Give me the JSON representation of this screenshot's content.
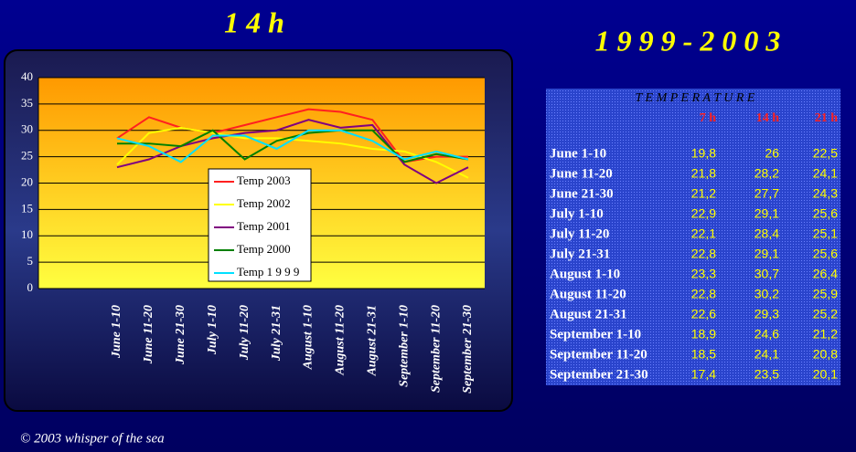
{
  "chart_data": {
    "type": "line",
    "title": "1 4  h",
    "categories": [
      "June 1-10",
      "June 11-20",
      "June 21-30",
      "July 1-10",
      "July 11-20",
      "July 21-31",
      "August 1-10",
      "August 11-20",
      "August 21-31",
      "September 1-10",
      "September 11-20",
      "September 21-30"
    ],
    "series": [
      {
        "name": "Temp 2003",
        "color": "#ff2020",
        "values": [
          28.5,
          32.5,
          30.5,
          29.5,
          31,
          32.5,
          34,
          33.5,
          32,
          24,
          25,
          25
        ]
      },
      {
        "name": "Temp 2002",
        "color": "#ffff00",
        "values": [
          23.5,
          29.5,
          30.5,
          29.5,
          28.5,
          28.5,
          28,
          27.5,
          26.5,
          26,
          24,
          21
        ]
      },
      {
        "name": "Temp 2001",
        "color": "#800080",
        "values": [
          23,
          24.5,
          27,
          28.5,
          29.5,
          30,
          32,
          30.5,
          31,
          23.5,
          20,
          23
        ]
      },
      {
        "name": "Temp 2000",
        "color": "#008000",
        "values": [
          27.5,
          27.5,
          27,
          30,
          24.5,
          28,
          29.5,
          30,
          30,
          24,
          25.5,
          24.5
        ]
      },
      {
        "name": "Temp 1 9 9 9",
        "color": "#00e0ff",
        "values": [
          28.5,
          27,
          24,
          29,
          29,
          26.5,
          30,
          30,
          28,
          24.5,
          26,
          24.5
        ]
      }
    ],
    "ylim": [
      0,
      40
    ],
    "yticks": [
      0,
      5,
      10,
      15,
      20,
      25,
      30,
      35,
      40
    ],
    "grid": true
  },
  "header": {
    "period": "1 9 9 9 - 2 0 0 3"
  },
  "table": {
    "title": "T E M P E R A T U R E",
    "columns": [
      "7 h",
      "14 h",
      "21 h"
    ],
    "rows": [
      [
        "June 1-10",
        "19,8",
        "26",
        "22,5"
      ],
      [
        "June 11-20",
        "21,8",
        "28,2",
        "24,1"
      ],
      [
        "June 21-30",
        "21,2",
        "27,7",
        "24,3"
      ],
      [
        "July 1-10",
        "22,9",
        "29,1",
        "25,6"
      ],
      [
        "July 11-20",
        "22,1",
        "28,4",
        "25,1"
      ],
      [
        "July 21-31",
        "22,8",
        "29,1",
        "25,6"
      ],
      [
        "August 1-10",
        "23,3",
        "30,7",
        "26,4"
      ],
      [
        "August 11-20",
        "22,8",
        "30,2",
        "25,9"
      ],
      [
        "August 21-31",
        "22,6",
        "29,3",
        "25,2"
      ],
      [
        "September 1-10",
        "18,9",
        "24,6",
        "21,2"
      ],
      [
        "September 11-20",
        "18,5",
        "24,1",
        "20,8"
      ],
      [
        "September 21-30",
        "17,4",
        "23,5",
        "20,1"
      ]
    ]
  },
  "footer": "© 2003 whisper of the sea"
}
